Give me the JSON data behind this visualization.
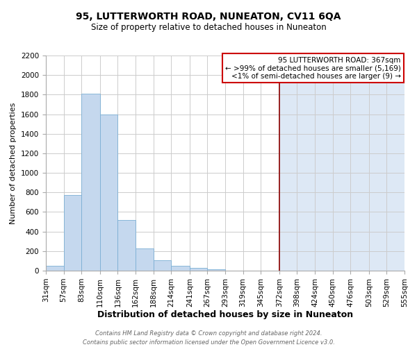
{
  "title": "95, LUTTERWORTH ROAD, NUNEATON, CV11 6QA",
  "subtitle": "Size of property relative to detached houses in Nuneaton",
  "xlabel": "Distribution of detached houses by size in Nuneaton",
  "ylabel": "Number of detached properties",
  "bin_edges": [
    31,
    57,
    83,
    110,
    136,
    162,
    188,
    214,
    241,
    267,
    293,
    319,
    345,
    372,
    398,
    424,
    450,
    476,
    503,
    529,
    555
  ],
  "bar_heights": [
    50,
    775,
    1810,
    1600,
    515,
    225,
    105,
    50,
    25,
    15,
    0,
    0,
    0,
    0,
    0,
    0,
    0,
    0,
    0,
    0
  ],
  "bar_color": "#c5d8ee",
  "bar_edgecolor": "#7bafd4",
  "grid_color": "#cccccc",
  "plot_bg_left": "#ffffff",
  "plot_bg_right": "#dde8f5",
  "vline_x": 372,
  "vline_color": "#8b0000",
  "annotation_title": "95 LUTTERWORTH ROAD: 367sqm",
  "annotation_line1": "← >99% of detached houses are smaller (5,169)",
  "annotation_line2": "<1% of semi-detached houses are larger (9) →",
  "annotation_box_color": "#ffffff",
  "annotation_border_color": "#cc0000",
  "footer_line1": "Contains HM Land Registry data © Crown copyright and database right 2024.",
  "footer_line2": "Contains public sector information licensed under the Open Government Licence v3.0.",
  "ylim": [
    0,
    2200
  ],
  "yticks": [
    0,
    200,
    400,
    600,
    800,
    1000,
    1200,
    1400,
    1600,
    1800,
    2000,
    2200
  ],
  "xtick_labels": [
    "31sqm",
    "57sqm",
    "83sqm",
    "110sqm",
    "136sqm",
    "162sqm",
    "188sqm",
    "214sqm",
    "241sqm",
    "267sqm",
    "293sqm",
    "319sqm",
    "345sqm",
    "372sqm",
    "398sqm",
    "424sqm",
    "450sqm",
    "476sqm",
    "503sqm",
    "529sqm",
    "555sqm"
  ],
  "title_fontsize": 10,
  "subtitle_fontsize": 8.5,
  "xlabel_fontsize": 9,
  "ylabel_fontsize": 8,
  "tick_fontsize": 7.5,
  "footer_fontsize": 6,
  "annot_fontsize": 7.5
}
